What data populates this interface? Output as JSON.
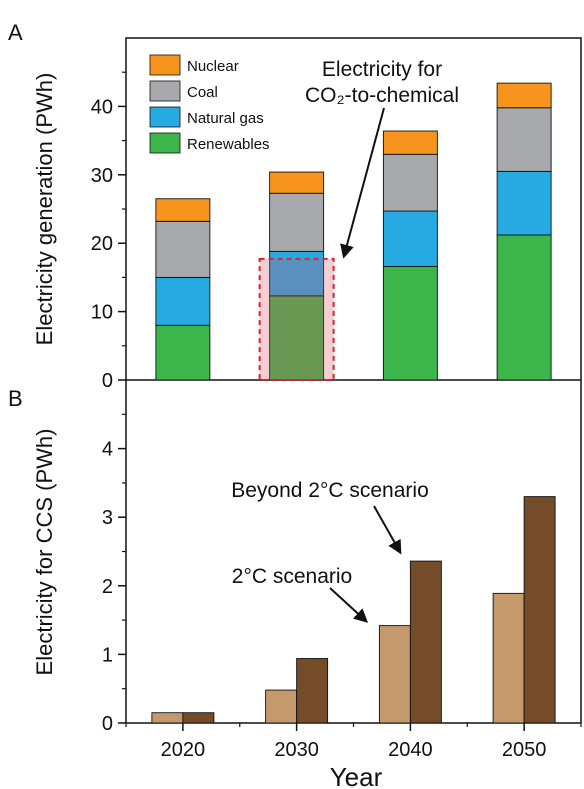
{
  "chart_data": [
    {
      "panel": "A",
      "type": "bar",
      "stacked": true,
      "categories": [
        "2020",
        "2030",
        "2040",
        "2050"
      ],
      "ylabel": "Electricity generation (PWh)",
      "ylim": [
        0,
        50
      ],
      "yticks": [
        0,
        10,
        20,
        30,
        40
      ],
      "series": [
        {
          "name": "Renewables",
          "color": "#3cb54a",
          "values": [
            8.0,
            12.3,
            16.6,
            21.2
          ]
        },
        {
          "name": "Natural gas",
          "color": "#27aae1",
          "values": [
            7.0,
            6.5,
            8.1,
            9.3
          ]
        },
        {
          "name": "Coal",
          "color": "#a7a9ac",
          "values": [
            8.2,
            8.5,
            8.3,
            9.3
          ]
        },
        {
          "name": "Nuclear",
          "color": "#f7941d",
          "values": [
            3.3,
            3.1,
            3.4,
            3.6
          ]
        }
      ],
      "legend_order": [
        "Nuclear",
        "Coal",
        "Natural gas",
        "Renewables"
      ],
      "legend_position": "top-left",
      "highlight": {
        "category": "2030",
        "y_range": [
          0,
          17.7
        ],
        "label_line1": "Electricity for",
        "label_line2": "CO₂-to-chemical"
      }
    },
    {
      "panel": "B",
      "type": "bar",
      "categories": [
        "2020",
        "2030",
        "2040",
        "2050"
      ],
      "xlabel": "Year",
      "ylabel": "Electricity for CCS (PWh)",
      "ylim": [
        0,
        5
      ],
      "yticks": [
        0,
        1,
        2,
        3,
        4
      ],
      "series": [
        {
          "name": "2°C scenario",
          "color": "#c49a6c",
          "values": [
            0.15,
            0.48,
            1.42,
            1.89
          ]
        },
        {
          "name": "Beyond 2°C scenario",
          "color": "#754c29",
          "values": [
            0.15,
            0.94,
            2.36,
            3.3
          ]
        }
      ]
    }
  ]
}
